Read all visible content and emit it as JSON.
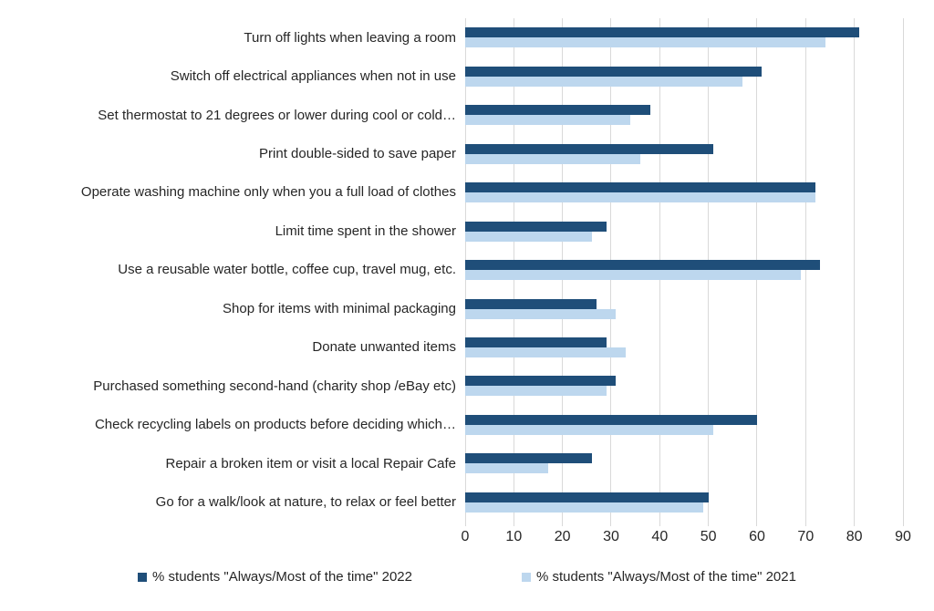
{
  "chart_data": {
    "type": "bar",
    "orientation": "horizontal",
    "title": "",
    "xlabel": "",
    "ylabel": "",
    "xlim": [
      0,
      90
    ],
    "x_ticks": [
      0,
      10,
      20,
      30,
      40,
      50,
      60,
      70,
      80,
      90
    ],
    "grid": true,
    "legend_position": "bottom",
    "categories": [
      "Turn off lights when leaving a room",
      "Switch off electrical appliances when not in use",
      "Set thermostat to 21 degrees or lower during cool or cold…",
      "Print double-sided to save paper",
      "Operate washing machine only when you a full load of clothes",
      "Limit time spent in the shower",
      "Use a reusable water bottle, coffee cup, travel mug, etc.",
      "Shop for items with minimal packaging",
      "Donate unwanted items",
      "Purchased something second-hand (charity shop /eBay etc)",
      "Check recycling labels on products before deciding which…",
      "Repair a broken item or visit a local Repair Cafe",
      "Go for a walk/look at nature, to relax or feel better"
    ],
    "series": [
      {
        "name": "% students \"Always/Most of the time\" 2022",
        "color": "#1F4E79",
        "values": [
          81,
          61,
          38,
          51,
          72,
          29,
          73,
          27,
          29,
          31,
          60,
          26,
          50
        ]
      },
      {
        "name": "% students \"Always/Most of the time\" 2021",
        "color": "#BDD7EE",
        "values": [
          74,
          57,
          34,
          36,
          72,
          26,
          69,
          31,
          33,
          29,
          51,
          17,
          49
        ]
      }
    ],
    "colors": {
      "gridline": "#d9d9d9",
      "text": "#262626",
      "background": "#ffffff"
    }
  }
}
